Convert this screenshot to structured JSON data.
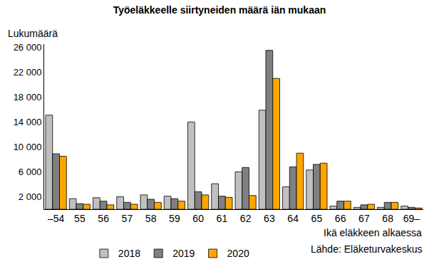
{
  "chart_data": {
    "type": "bar",
    "title": "Työeläkkeelle siirtyneiden määrä iän mukaan",
    "y_label": "Lukumäärä",
    "x_label": "Ikä eläkkeen alkaessa",
    "source": "Lähde: Eläketurvakeskus",
    "categories": [
      "–54",
      "55",
      "56",
      "57",
      "58",
      "59",
      "60",
      "61",
      "62",
      "63",
      "64",
      "65",
      "66",
      "67",
      "68",
      "69–"
    ],
    "series": [
      {
        "name": "2018",
        "color": "#c0c0c0",
        "values": [
          15100,
          1700,
          1850,
          2000,
          2300,
          2100,
          14000,
          4100,
          6000,
          15900,
          3600,
          6300,
          500,
          300,
          300,
          500
        ]
      },
      {
        "name": "2019",
        "color": "#808080",
        "values": [
          8900,
          900,
          1300,
          1100,
          1600,
          1700,
          2800,
          2100,
          6700,
          25500,
          6800,
          7200,
          1300,
          700,
          1100,
          300
        ]
      },
      {
        "name": "2020",
        "color": "#ffa500",
        "values": [
          8500,
          800,
          700,
          800,
          1100,
          1300,
          2300,
          1900,
          2200,
          21000,
          9000,
          7400,
          1300,
          800,
          1100,
          200
        ]
      }
    ],
    "ylim": [
      0,
      26500
    ],
    "yticks": [
      {
        "value": 2000,
        "label": "2 000"
      },
      {
        "value": 6000,
        "label": "6 000"
      },
      {
        "value": 10000,
        "label": "10 000"
      },
      {
        "value": 14000,
        "label": "14 000"
      },
      {
        "value": 18000,
        "label": "18 000"
      },
      {
        "value": 22000,
        "label": "22 000"
      },
      {
        "value": 26000,
        "label": "26 000"
      }
    ],
    "grid": false,
    "legend": "bottom"
  }
}
